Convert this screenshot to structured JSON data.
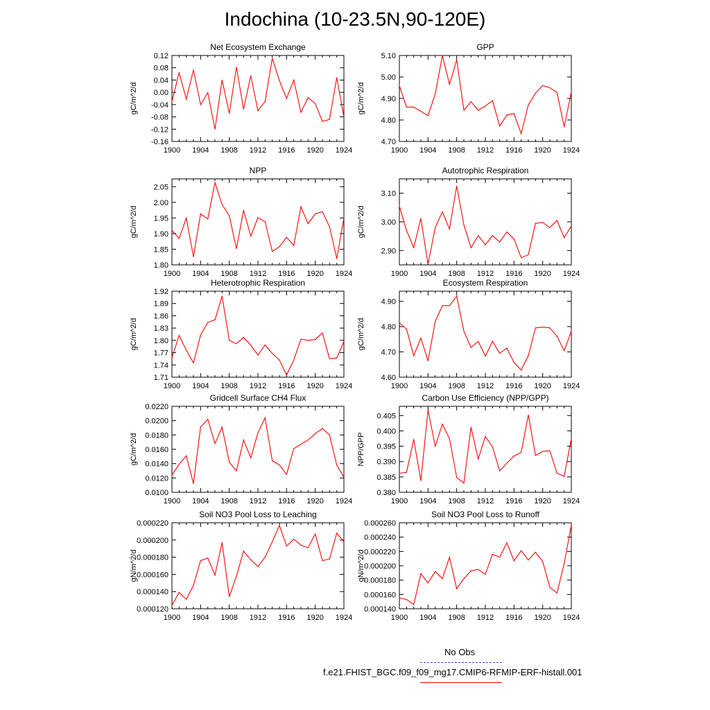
{
  "figure": {
    "title": "Indochina (10-23.5N,90-120E)",
    "line_color": "#ff0000",
    "obs_color": "#3a3ad0",
    "legend": {
      "obs_label": "No Obs",
      "case_label": "f.e21.FHIST_BGC.f09_f09_mg17.CMIP6-RFMIP-ERF-histall.001"
    }
  },
  "chart_data": [
    {
      "type": "line",
      "title": "Net Ecosystem Exchange",
      "ylabel": "gC/m^2/d",
      "xlabel": "",
      "xlim": [
        1900,
        1924
      ],
      "ylim": [
        -0.16,
        0.12
      ],
      "xticks": [
        1900,
        1904,
        1908,
        1912,
        1916,
        1920,
        1924
      ],
      "xtick_labels": [
        "1900",
        "1904",
        "1908",
        "1912",
        "1916",
        "1920",
        "1924"
      ],
      "yticks": [
        -0.16,
        -0.12,
        -0.08,
        -0.04,
        0.0,
        0.04,
        0.08,
        0.12
      ],
      "ytick_labels": [
        "-0.16",
        "-0.12",
        "-0.08",
        "-0.04",
        "0.00",
        "0.04",
        "0.08",
        "0.12"
      ],
      "x": [
        1900,
        1901,
        1902,
        1903,
        1904,
        1905,
        1906,
        1907,
        1908,
        1909,
        1910,
        1911,
        1912,
        1913,
        1914,
        1915,
        1916,
        1917,
        1918,
        1919,
        1920,
        1921,
        1922,
        1923,
        1924
      ],
      "values": [
        -0.03,
        0.064,
        -0.022,
        0.073,
        -0.04,
        -0.001,
        -0.12,
        0.04,
        -0.068,
        0.082,
        -0.055,
        0.054,
        -0.06,
        -0.03,
        0.111,
        0.038,
        -0.02,
        0.04,
        -0.065,
        -0.017,
        -0.037,
        -0.095,
        -0.088,
        0.048,
        -0.08
      ]
    },
    {
      "type": "line",
      "title": "GPP",
      "ylabel": "gC/m^2/d",
      "xlabel": "",
      "xlim": [
        1900,
        1924
      ],
      "ylim": [
        4.7,
        5.1
      ],
      "xticks": [
        1900,
        1904,
        1908,
        1912,
        1916,
        1920,
        1924
      ],
      "xtick_labels": [
        "1900",
        "1904",
        "1908",
        "1912",
        "1916",
        "1920",
        "1924"
      ],
      "yticks": [
        4.7,
        4.8,
        4.9,
        5.0,
        5.1
      ],
      "ytick_labels": [
        "4.70",
        "4.80",
        "4.90",
        "5.00",
        "5.10"
      ],
      "x": [
        1900,
        1901,
        1902,
        1903,
        1904,
        1905,
        1906,
        1907,
        1908,
        1909,
        1910,
        1911,
        1912,
        1913,
        1914,
        1915,
        1916,
        1917,
        1918,
        1919,
        1920,
        1921,
        1922,
        1923,
        1924
      ],
      "values": [
        4.96,
        4.86,
        4.86,
        4.84,
        4.82,
        4.92,
        5.1,
        4.965,
        5.08,
        4.845,
        4.885,
        4.845,
        4.865,
        4.89,
        4.772,
        4.823,
        4.83,
        4.736,
        4.87,
        4.925,
        4.96,
        4.95,
        4.928,
        4.768,
        4.93
      ]
    },
    {
      "type": "line",
      "title": "NPP",
      "ylabel": "gC/m^2/d",
      "xlabel": "",
      "xlim": [
        1900,
        1924
      ],
      "ylim": [
        1.8,
        2.075
      ],
      "xticks": [
        1900,
        1904,
        1908,
        1912,
        1916,
        1920,
        1924
      ],
      "xtick_labels": [
        "1900",
        "1904",
        "1908",
        "1912",
        "1916",
        "1920",
        "1924"
      ],
      "yticks": [
        1.8,
        1.85,
        1.9,
        1.95,
        2.0,
        2.05
      ],
      "ytick_labels": [
        "1.80",
        "1.85",
        "1.90",
        "1.95",
        "2.00",
        "2.05"
      ],
      "x": [
        1900,
        1901,
        1902,
        1903,
        1904,
        1905,
        1906,
        1907,
        1908,
        1909,
        1910,
        1911,
        1912,
        1913,
        1914,
        1915,
        1916,
        1917,
        1918,
        1919,
        1920,
        1921,
        1922,
        1923,
        1924
      ],
      "values": [
        1.91,
        1.885,
        1.95,
        1.826,
        1.963,
        1.947,
        2.063,
        1.993,
        1.957,
        1.852,
        1.975,
        1.892,
        1.951,
        1.938,
        1.843,
        1.858,
        1.888,
        1.862,
        1.986,
        1.932,
        1.963,
        1.97,
        1.922,
        1.82,
        1.95
      ]
    },
    {
      "type": "line",
      "title": "Autotrophic Respiration",
      "ylabel": "gC/m^2/d",
      "xlabel": "",
      "xlim": [
        1900,
        1924
      ],
      "ylim": [
        2.85,
        3.15
      ],
      "xticks": [
        1900,
        1904,
        1908,
        1912,
        1916,
        1920,
        1924
      ],
      "xtick_labels": [
        "1900",
        "1904",
        "1908",
        "1912",
        "1916",
        "1920",
        "1924"
      ],
      "yticks": [
        2.9,
        3.0,
        3.1
      ],
      "ytick_labels": [
        "2.90",
        "3.00",
        "3.10"
      ],
      "x": [
        1900,
        1901,
        1902,
        1903,
        1904,
        1905,
        1906,
        1907,
        1908,
        1909,
        1910,
        1911,
        1912,
        1913,
        1914,
        1915,
        1916,
        1917,
        1918,
        1919,
        1920,
        1921,
        1922,
        1923,
        1924
      ],
      "values": [
        3.055,
        2.97,
        2.91,
        3.012,
        2.852,
        2.98,
        3.035,
        2.975,
        3.125,
        2.99,
        2.91,
        2.952,
        2.92,
        2.952,
        2.93,
        2.965,
        2.94,
        2.875,
        2.885,
        2.995,
        2.998,
        2.98,
        3.005,
        2.945,
        2.985
      ]
    },
    {
      "type": "line",
      "title": "Heterotrophic Respiration",
      "ylabel": "gC/m^2/d",
      "xlabel": "",
      "xlim": [
        1900,
        1924
      ],
      "ylim": [
        1.71,
        1.92
      ],
      "xticks": [
        1900,
        1904,
        1908,
        1912,
        1916,
        1920,
        1924
      ],
      "xtick_labels": [
        "1900",
        "1904",
        "1908",
        "1912",
        "1916",
        "1920",
        "1924"
      ],
      "yticks": [
        1.71,
        1.74,
        1.77,
        1.8,
        1.83,
        1.86,
        1.89,
        1.92
      ],
      "ytick_labels": [
        "1.71",
        "1.74",
        "1.77",
        "1.80",
        "1.83",
        "1.86",
        "1.89",
        "1.92"
      ],
      "x": [
        1900,
        1901,
        1902,
        1903,
        1904,
        1905,
        1906,
        1907,
        1908,
        1909,
        1910,
        1911,
        1912,
        1913,
        1914,
        1915,
        1916,
        1917,
        1918,
        1919,
        1920,
        1921,
        1922,
        1923,
        1924
      ],
      "values": [
        1.758,
        1.812,
        1.776,
        1.745,
        1.813,
        1.844,
        1.85,
        1.908,
        1.8,
        1.792,
        1.807,
        1.788,
        1.764,
        1.789,
        1.768,
        1.752,
        1.715,
        1.752,
        1.803,
        1.8,
        1.802,
        1.818,
        1.755,
        1.757,
        1.797
      ]
    },
    {
      "type": "line",
      "title": "Ecosystem Respiration",
      "ylabel": "gC/m^2/d",
      "xlabel": "",
      "xlim": [
        1900,
        1924
      ],
      "ylim": [
        4.6,
        4.94
      ],
      "xticks": [
        1900,
        1904,
        1908,
        1912,
        1916,
        1920,
        1924
      ],
      "xtick_labels": [
        "1900",
        "1904",
        "1908",
        "1912",
        "1916",
        "1920",
        "1924"
      ],
      "yticks": [
        4.6,
        4.7,
        4.8,
        4.9
      ],
      "ytick_labels": [
        "4.60",
        "4.70",
        "4.80",
        "4.90"
      ],
      "x": [
        1900,
        1901,
        1902,
        1903,
        1904,
        1905,
        1906,
        1907,
        1908,
        1909,
        1910,
        1911,
        1912,
        1913,
        1914,
        1915,
        1916,
        1917,
        1918,
        1919,
        1920,
        1921,
        1922,
        1923,
        1924
      ],
      "values": [
        4.815,
        4.79,
        4.685,
        4.755,
        4.665,
        4.82,
        4.883,
        4.883,
        4.92,
        4.782,
        4.718,
        4.742,
        4.683,
        4.742,
        4.695,
        4.715,
        4.658,
        4.628,
        4.685,
        4.795,
        4.798,
        4.795,
        4.762,
        4.705,
        4.782
      ]
    },
    {
      "type": "line",
      "title": "Gridcell Surface CH4 Flux",
      "ylabel": "gC/m^2/d",
      "xlabel": "",
      "xlim": [
        1900,
        1924
      ],
      "ylim": [
        0.01,
        0.022
      ],
      "xticks": [
        1900,
        1904,
        1908,
        1912,
        1916,
        1920,
        1924
      ],
      "xtick_labels": [
        "1900",
        "1904",
        "1908",
        "1912",
        "1916",
        "1920",
        "1924"
      ],
      "yticks": [
        0.01,
        0.012,
        0.014,
        0.016,
        0.018,
        0.02,
        0.022
      ],
      "ytick_labels": [
        "0.0100",
        "0.0120",
        "0.0140",
        "0.0160",
        "0.0180",
        "0.0200",
        "0.0220"
      ],
      "x": [
        1900,
        1901,
        1902,
        1903,
        1904,
        1905,
        1906,
        1907,
        1908,
        1909,
        1910,
        1911,
        1912,
        1913,
        1914,
        1915,
        1916,
        1917,
        1918,
        1919,
        1920,
        1921,
        1922,
        1923,
        1924
      ],
      "values": [
        0.0124,
        0.0139,
        0.0151,
        0.0112,
        0.0191,
        0.0202,
        0.0168,
        0.0191,
        0.0142,
        0.013,
        0.0173,
        0.0148,
        0.0183,
        0.0204,
        0.0144,
        0.0138,
        0.0125,
        0.0161,
        0.0167,
        0.0173,
        0.0182,
        0.0189,
        0.018,
        0.0138,
        0.0121
      ]
    },
    {
      "type": "line",
      "title": "Carbon Use Efficiency (NPP/GPP)",
      "ylabel": "NPP/GPP",
      "xlabel": "",
      "xlim": [
        1900,
        1924
      ],
      "ylim": [
        0.38,
        0.408
      ],
      "xticks": [
        1900,
        1904,
        1908,
        1912,
        1916,
        1920,
        1924
      ],
      "xtick_labels": [
        "1900",
        "1904",
        "1908",
        "1912",
        "1916",
        "1920",
        "1924"
      ],
      "yticks": [
        0.38,
        0.385,
        0.39,
        0.395,
        0.4,
        0.405
      ],
      "ytick_labels": [
        "0.380",
        "0.385",
        "0.390",
        "0.395",
        "0.400",
        "0.405"
      ],
      "x": [
        1900,
        1901,
        1902,
        1903,
        1904,
        1905,
        1906,
        1907,
        1908,
        1909,
        1910,
        1911,
        1912,
        1913,
        1914,
        1915,
        1916,
        1917,
        1918,
        1919,
        1920,
        1921,
        1922,
        1923,
        1924
      ],
      "values": [
        0.3862,
        0.3865,
        0.3972,
        0.3838,
        0.4068,
        0.395,
        0.4022,
        0.3975,
        0.3848,
        0.383,
        0.4012,
        0.3908,
        0.3982,
        0.3948,
        0.387,
        0.3895,
        0.3918,
        0.393,
        0.4052,
        0.392,
        0.3933,
        0.3935,
        0.3862,
        0.3852,
        0.3975
      ]
    },
    {
      "type": "line",
      "title": "Soil NO3 Pool Loss to Leaching",
      "ylabel": "gN/m^2/d",
      "xlabel": "",
      "xlim": [
        1900,
        1924
      ],
      "ylim": [
        0.00012,
        0.00022
      ],
      "xticks": [
        1900,
        1904,
        1908,
        1912,
        1916,
        1920,
        1924
      ],
      "xtick_labels": [
        "1900",
        "1904",
        "1908",
        "1912",
        "1916",
        "1920",
        "1924"
      ],
      "yticks": [
        0.00012,
        0.00014,
        0.00016,
        0.00018,
        0.0002,
        0.00022
      ],
      "ytick_labels": [
        "0.000120",
        "0.000140",
        "0.000160",
        "0.000180",
        "0.000200",
        "0.000220"
      ],
      "x": [
        1900,
        1901,
        1902,
        1903,
        1904,
        1905,
        1906,
        1907,
        1908,
        1909,
        1910,
        1911,
        1912,
        1913,
        1914,
        1915,
        1916,
        1917,
        1918,
        1919,
        1920,
        1921,
        1922,
        1923,
        1924
      ],
      "values": [
        0.000124,
        0.000139,
        0.000131,
        0.000147,
        0.000176,
        0.000179,
        0.000159,
        0.000197,
        0.000134,
        0.000158,
        0.000187,
        0.000177,
        0.000169,
        0.00018,
        0.000198,
        0.000217,
        0.000193,
        0.000201,
        0.000194,
        0.000191,
        0.000207,
        0.000176,
        0.000178,
        0.000208,
        0.000198
      ]
    },
    {
      "type": "line",
      "title": "Soil NO3 Pool Loss to Runoff",
      "ylabel": "gN/m^2/d",
      "xlabel": "",
      "xlim": [
        1900,
        1924
      ],
      "ylim": [
        0.00014,
        0.00026
      ],
      "xticks": [
        1900,
        1904,
        1908,
        1912,
        1916,
        1920,
        1924
      ],
      "xtick_labels": [
        "1900",
        "1904",
        "1908",
        "1912",
        "1916",
        "1920",
        "1924"
      ],
      "yticks": [
        0.00014,
        0.00016,
        0.00018,
        0.0002,
        0.00022,
        0.00024,
        0.00026
      ],
      "ytick_labels": [
        "0.000140",
        "0.000160",
        "0.000180",
        "0.000200",
        "0.000220",
        "0.000240",
        "0.000260"
      ],
      "x": [
        1900,
        1901,
        1902,
        1903,
        1904,
        1905,
        1906,
        1907,
        1908,
        1909,
        1910,
        1911,
        1912,
        1913,
        1914,
        1915,
        1916,
        1917,
        1918,
        1919,
        1920,
        1921,
        1922,
        1923,
        1924
      ],
      "values": [
        0.000155,
        0.000153,
        0.000146,
        0.000189,
        0.000176,
        0.000192,
        0.000182,
        0.000212,
        0.000168,
        0.000182,
        0.000193,
        0.000195,
        0.000188,
        0.000216,
        0.000212,
        0.000232,
        0.000207,
        0.000221,
        0.000208,
        0.000219,
        0.000206,
        0.00017,
        0.000162,
        0.000203,
        0.000257
      ]
    }
  ]
}
